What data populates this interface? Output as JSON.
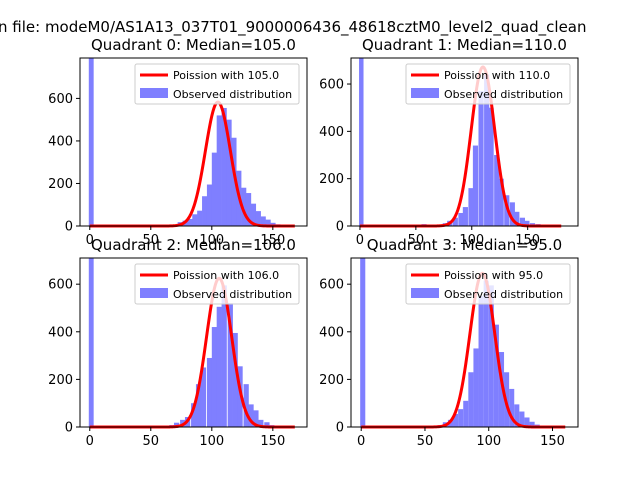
{
  "figure": {
    "suptitle": "n file: modeM0/AS1A13_037T01_9000006436_48618cztM0_level2_quad_clean"
  },
  "colors": {
    "hist": "#7f7fff",
    "fit": "#ff0000",
    "legend_frame": "#cccccc"
  },
  "chart_data": [
    {
      "type": "bar",
      "title": "Quadrant 0: Median=105.0",
      "xlim": [
        -8,
        178
      ],
      "ylim": [
        0,
        790
      ],
      "xticks": [
        0,
        50,
        100,
        150
      ],
      "yticks": [
        0,
        200,
        400,
        600
      ],
      "median": 105.0,
      "bin_width": 4.25,
      "spike": {
        "x": 0,
        "height": 790
      },
      "bins": [
        [
          52,
          4
        ],
        [
          56,
          4
        ],
        [
          60,
          0
        ],
        [
          64,
          4
        ],
        [
          68,
          7
        ],
        [
          72,
          18
        ],
        [
          76,
          25
        ],
        [
          80,
          33
        ],
        [
          84,
          55
        ],
        [
          88,
          72
        ],
        [
          92,
          140
        ],
        [
          96,
          195
        ],
        [
          100,
          345
        ],
        [
          104,
          520
        ],
        [
          108,
          555
        ],
        [
          112,
          500
        ],
        [
          116,
          415
        ],
        [
          120,
          260
        ],
        [
          124,
          180
        ],
        [
          128,
          155
        ],
        [
          132,
          105
        ],
        [
          136,
          70
        ],
        [
          140,
          45
        ],
        [
          144,
          30
        ],
        [
          148,
          15
        ],
        [
          152,
          8
        ]
      ],
      "fit": {
        "lambda": 105.0,
        "x_start": 0,
        "x_end": 168
      },
      "legend": {
        "fit_label": "Poission with 105.0",
        "hist_label": "Observed distribution",
        "loc": "upper right"
      }
    },
    {
      "type": "bar",
      "title": "Quadrant 1: Median=110.0",
      "xlim": [
        -8,
        195
      ],
      "ylim": [
        0,
        710
      ],
      "xticks": [
        0,
        50,
        100,
        150
      ],
      "yticks": [
        0,
        200,
        400,
        600
      ],
      "median": 110.0,
      "bin_width": 4.6,
      "spike": {
        "x": 0,
        "height": 710
      },
      "bins": [
        [
          55,
          8
        ],
        [
          60,
          4
        ],
        [
          64,
          0
        ],
        [
          69,
          6
        ],
        [
          74,
          12
        ],
        [
          78,
          22
        ],
        [
          83,
          35
        ],
        [
          88,
          55
        ],
        [
          92,
          80
        ],
        [
          97,
          160
        ],
        [
          101,
          340
        ],
        [
          106,
          570
        ],
        [
          111,
          640
        ],
        [
          115,
          500
        ],
        [
          120,
          300
        ],
        [
          124,
          200
        ],
        [
          129,
          130
        ],
        [
          134,
          100
        ],
        [
          138,
          60
        ],
        [
          143,
          35
        ],
        [
          147,
          22
        ],
        [
          152,
          12
        ],
        [
          157,
          8
        ]
      ],
      "fit": {
        "lambda": 110.0,
        "x_start": 0,
        "x_end": 180
      },
      "legend": {
        "fit_label": "Poission with 110.0",
        "hist_label": "Observed distribution",
        "loc": "upper right"
      }
    },
    {
      "type": "bar",
      "title": "Quadrant 2: Median=106.0",
      "xlim": [
        -8,
        178
      ],
      "ylim": [
        0,
        710
      ],
      "xticks": [
        0,
        50,
        100,
        150
      ],
      "yticks": [
        0,
        200,
        400,
        600
      ],
      "median": 106.0,
      "bin_width": 4.3,
      "spike": {
        "x": 0,
        "height": 710
      },
      "bins": [
        [
          48,
          4
        ],
        [
          52,
          4
        ],
        [
          57,
          0
        ],
        [
          61,
          4
        ],
        [
          65,
          8
        ],
        [
          69,
          18
        ],
        [
          74,
          30
        ],
        [
          78,
          42
        ],
        [
          83,
          100
        ],
        [
          87,
          180
        ],
        [
          91,
          250
        ],
        [
          96,
          290
        ],
        [
          100,
          420
        ],
        [
          104,
          505
        ],
        [
          108,
          595
        ],
        [
          113,
          520
        ],
        [
          117,
          395
        ],
        [
          121,
          255
        ],
        [
          126,
          180
        ],
        [
          130,
          95
        ],
        [
          134,
          70
        ],
        [
          138,
          30
        ],
        [
          143,
          20
        ],
        [
          147,
          8
        ],
        [
          151,
          4
        ]
      ],
      "fit": {
        "lambda": 106.0,
        "x_start": 0,
        "x_end": 168
      },
      "legend": {
        "fit_label": "Poission with 106.0",
        "hist_label": "Observed distribution",
        "loc": "upper right"
      }
    },
    {
      "type": "bar",
      "title": "Quadrant 3: Median=95.0",
      "xlim": [
        -8,
        170
      ],
      "ylim": [
        0,
        710
      ],
      "xticks": [
        0,
        50,
        100,
        150
      ],
      "yticks": [
        0,
        200,
        400,
        600
      ],
      "median": 95.0,
      "bin_width": 4.0,
      "spike": {
        "x": 0,
        "height": 710
      },
      "bins": [
        [
          44,
          4
        ],
        [
          48,
          4
        ],
        [
          52,
          0
        ],
        [
          56,
          5
        ],
        [
          60,
          8
        ],
        [
          64,
          20
        ],
        [
          68,
          30
        ],
        [
          72,
          55
        ],
        [
          76,
          75
        ],
        [
          80,
          110
        ],
        [
          84,
          230
        ],
        [
          88,
          330
        ],
        [
          92,
          550
        ],
        [
          96,
          615
        ],
        [
          100,
          595
        ],
        [
          104,
          430
        ],
        [
          108,
          315
        ],
        [
          112,
          230
        ],
        [
          116,
          160
        ],
        [
          120,
          95
        ],
        [
          124,
          65
        ],
        [
          128,
          40
        ],
        [
          132,
          22
        ],
        [
          136,
          10
        ],
        [
          140,
          5
        ]
      ],
      "fit": {
        "lambda": 95.0,
        "x_start": 0,
        "x_end": 160
      },
      "legend": {
        "fit_label": "Poission with 95.0",
        "hist_label": "Observed distribution",
        "loc": "upper right"
      }
    }
  ]
}
